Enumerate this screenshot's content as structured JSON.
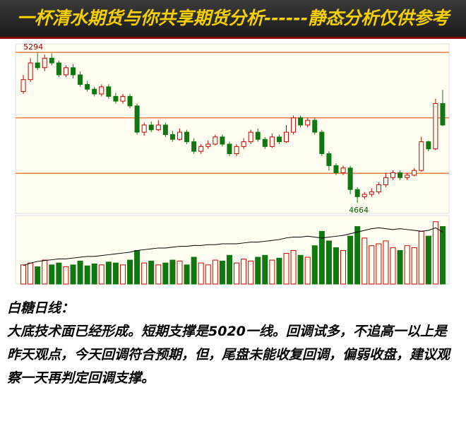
{
  "header": {
    "title": "一杯清水期货与你共享期货分析------静态分析仅供参考"
  },
  "chart_data": {
    "type": "candlestick",
    "open": [
      5130,
      5180,
      5250,
      5230,
      5270,
      5250,
      5200,
      5230,
      5200,
      5160,
      5140,
      5120,
      5150,
      5110,
      5090,
      5110,
      5070,
      4960,
      4990,
      4970,
      4990,
      4950,
      4930,
      4960,
      4920,
      4880,
      4900,
      4910,
      4940,
      4910,
      4870,
      4900,
      4920,
      4960,
      4930,
      4900,
      4940,
      4920,
      4960,
      5020,
      4990,
      5010,
      4960,
      4870,
      4820,
      4790,
      4810,
      4720,
      4690,
      4700,
      4710,
      4740,
      4770,
      4790,
      4770,
      4780,
      4800,
      4920,
      4890,
      5080
    ],
    "close": [
      5180,
      5250,
      5230,
      5270,
      5250,
      5200,
      5230,
      5200,
      5160,
      5140,
      5120,
      5150,
      5110,
      5090,
      5110,
      5070,
      4960,
      4990,
      4970,
      4990,
      4950,
      4930,
      4960,
      4920,
      4880,
      4900,
      4910,
      4940,
      4910,
      4870,
      4900,
      4920,
      4960,
      4930,
      4900,
      4940,
      4920,
      4960,
      5020,
      4990,
      5010,
      4960,
      4870,
      4820,
      4790,
      4810,
      4720,
      4690,
      4700,
      4710,
      4740,
      4770,
      4790,
      4770,
      4780,
      4800,
      4920,
      4890,
      5080,
      4990
    ],
    "high": [
      5200,
      5270,
      5294,
      5285,
      5290,
      5260,
      5240,
      5245,
      5215,
      5175,
      5150,
      5160,
      5160,
      5125,
      5120,
      5120,
      5080,
      5000,
      5005,
      5010,
      5000,
      4965,
      4975,
      4970,
      4935,
      4910,
      4925,
      4950,
      4950,
      4920,
      4910,
      4935,
      4970,
      4975,
      4940,
      4955,
      4950,
      4990,
      5030,
      5030,
      5020,
      5020,
      4970,
      4880,
      4830,
      4820,
      4820,
      4730,
      4710,
      4725,
      4750,
      4790,
      4800,
      4800,
      4790,
      4810,
      4940,
      4925,
      5100,
      5137
    ],
    "low": [
      5120,
      5170,
      5220,
      5215,
      5240,
      5190,
      5190,
      5185,
      5150,
      5130,
      5110,
      5110,
      5100,
      5080,
      5080,
      5060,
      4950,
      4945,
      4960,
      4965,
      4940,
      4920,
      4925,
      4910,
      4870,
      4870,
      4890,
      4905,
      4900,
      4860,
      4860,
      4890,
      4910,
      4920,
      4890,
      4895,
      4910,
      4915,
      4950,
      4980,
      4980,
      4950,
      4860,
      4800,
      4780,
      4780,
      4700,
      4664,
      4680,
      4690,
      4700,
      4730,
      4760,
      4760,
      4760,
      4775,
      4795,
      4880,
      4885,
      4985
    ],
    "ylim": [
      4620,
      5330
    ],
    "hlines": [
      5294,
      5020,
      4788
    ],
    "volume": [
      20,
      22,
      18,
      25,
      20,
      22,
      18,
      20,
      24,
      19,
      21,
      20,
      23,
      22,
      20,
      25,
      35,
      22,
      24,
      20,
      22,
      25,
      24,
      20,
      28,
      22,
      20,
      25,
      24,
      30,
      22,
      26,
      24,
      28,
      30,
      25,
      27,
      32,
      35,
      30,
      28,
      40,
      55,
      45,
      38,
      35,
      50,
      60,
      48,
      40,
      42,
      45,
      38,
      35,
      40,
      38,
      55,
      50,
      65,
      60
    ],
    "volume_ylim": [
      0,
      70
    ],
    "open_interest": [
      22,
      25,
      27,
      28,
      29,
      30,
      30,
      31,
      32,
      33,
      33,
      34,
      35,
      36,
      37,
      38,
      40,
      41,
      42,
      43,
      43,
      44,
      45,
      45,
      46,
      46,
      47,
      47,
      48,
      48,
      48,
      49,
      50,
      50,
      51,
      52,
      53,
      55,
      56,
      56,
      57,
      56,
      55,
      56,
      57,
      58,
      60,
      62,
      64,
      66,
      67,
      66,
      65,
      66,
      65,
      64,
      63,
      64,
      67,
      62
    ],
    "open_interest_ylim": [
      0,
      80
    ],
    "up_color": "#cc0000",
    "down_color": "#117711"
  },
  "commentary": {
    "heading": "白糖日线：",
    "body": "大底技术面已经形成。短期支撑是5020一线。回调试多，不追高一以上是昨天观点，今天回调符合预期，但，尾盘未能收复回调，偏弱收盘，建议观察一天再判定回调支撑。"
  }
}
